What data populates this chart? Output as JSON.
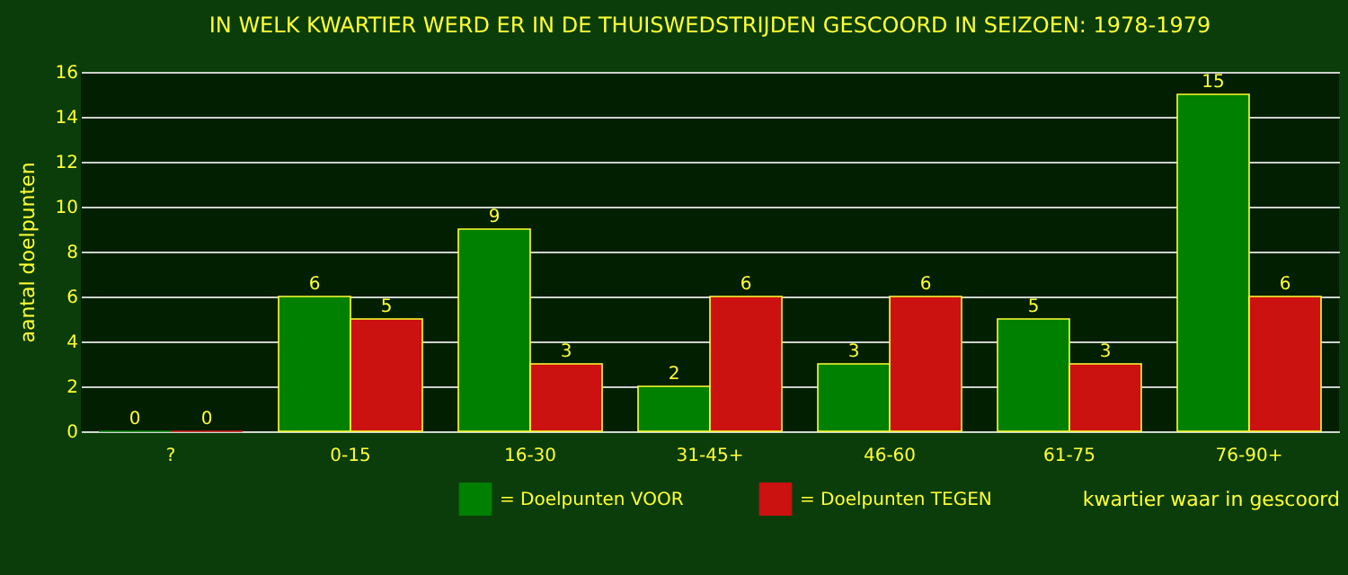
{
  "chart_data": {
    "type": "bar",
    "title": "IN WELK KWARTIER WERD ER IN DE THUISWEDSTRIJDEN GESCOORD IN SEIZOEN: 1978-1979",
    "xlabel": "kwartier waar in gescoord",
    "ylabel": "aantal doelpunten",
    "categories": [
      "?",
      "0-15",
      "16-30",
      "31-45+",
      "46-60",
      "61-75",
      "76-90+"
    ],
    "series": [
      {
        "name": "= Doelpunten VOOR",
        "color": "#008000",
        "values": [
          0,
          6,
          9,
          2,
          3,
          5,
          15
        ]
      },
      {
        "name": "= Doelpunten TEGEN",
        "color": "#cc1111",
        "values": [
          0,
          5,
          3,
          6,
          6,
          3,
          6
        ]
      }
    ],
    "ylim": [
      0,
      16
    ],
    "yticks": [
      0,
      2,
      4,
      6,
      8,
      10,
      12,
      14,
      16
    ],
    "grid": "y",
    "legend": "bottom",
    "data_labels": true
  }
}
